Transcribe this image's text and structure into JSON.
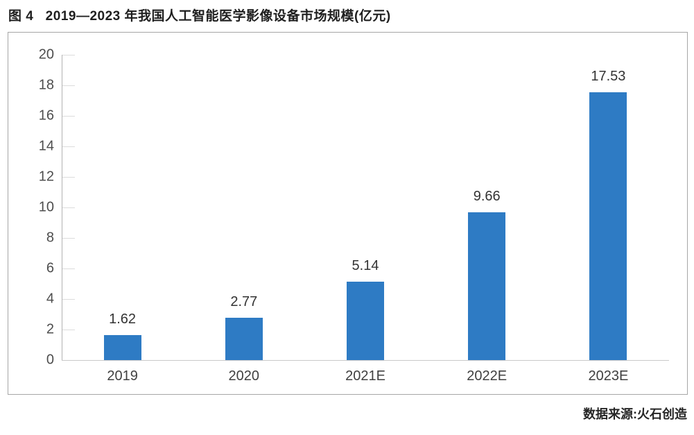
{
  "figure": {
    "title": "图 4   2019—2023 年我国人工智能医学影像设备市场规模(亿元)",
    "source": "数据来源:火石创造"
  },
  "chart_data": {
    "type": "bar",
    "title": "图 4 2019—2023 年我国人工智能医学影像设备市场规模(亿元)",
    "categories": [
      "2019",
      "2020",
      "2021E",
      "2022E",
      "2023E"
    ],
    "values": [
      1.62,
      2.77,
      5.14,
      9.66,
      17.53
    ],
    "value_labels": [
      "1.62",
      "2.77",
      "5.14",
      "9.66",
      "17.53"
    ],
    "xlabel": "",
    "ylabel": "",
    "ylim": [
      0,
      20
    ],
    "yticks": [
      0,
      2,
      4,
      6,
      8,
      10,
      12,
      14,
      16,
      18,
      20
    ],
    "grid": false,
    "legend_position": "none",
    "bar_color": "#2e7bc4",
    "source": "数据来源:火石创造"
  },
  "colors": {
    "bar": "#2e7bc4",
    "frame_border": "#a6a6a6",
    "axis_line": "#b3b3b3",
    "tick_line": "#dcdcdc",
    "tick_text": "#4d4d4d",
    "label_text": "#333333",
    "background": "#ffffff"
  }
}
